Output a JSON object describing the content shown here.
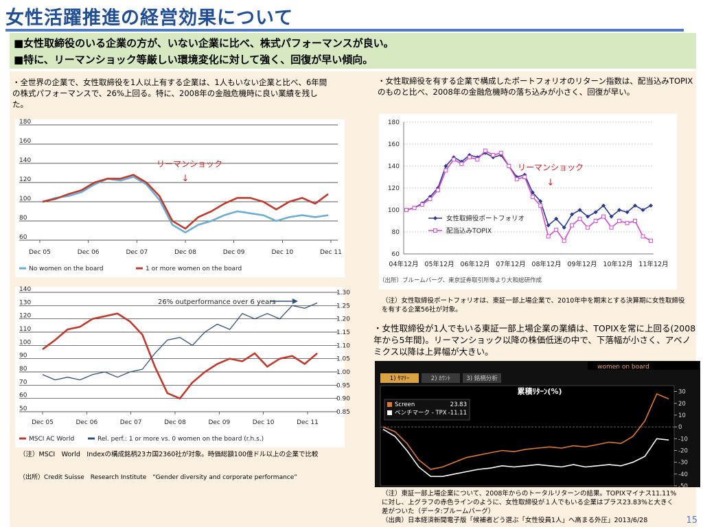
{
  "slide": {
    "title": "女性活躍推進の経営効果について",
    "summary_line1": "■女性取締役のいる企業の方が、いない企業に比べ、株式パフォーマンスが良い。",
    "summary_line2": "■特に、リーマンショック等厳しい環境変化に対して強く、回復が早い傾向。",
    "left_text": "・全世界の企業で、女性取締役を1人以上有する企業は、1人もいない企業と比べ、6年間の株式パフォーマンスで、26%上回る。特に、2008年の金融危機時に良い業績を残した。",
    "right_text1": "・女性取締役を有する企業で構成したポートフォリオのリターン指数は、配当込みTOPIXのものと比べ、2008年の金融危機時の落ち込みが小さく、回復が早い。",
    "right_note1": "（注）女性取締役ポートフォリオは、東証一部上場企業で、2010年中を期末とする決算期に女性取締役を有する企業56社が対象。",
    "right_text2": "・女性取締役が1人でもいる東証一部上場企業の業績は、TOPIXを常に上回る(2008年から5年間)。リーマンショック以降の株価低迷の中で、下落幅が小さく、アベノミクス以降は上昇幅が大きい。",
    "left_note1": "（注）MSCI　World　Indexの構成銘柄23カ国2360社が対象。時価総額100億ドル以上の企業で比較",
    "left_note2": "（出所）Credit Suisse　Research Institute　“Gender diversity and corporate performance”",
    "right_note2": "（注）東証一部上場企業について、2008年からのトータルリターンの結果。TOPIXマイナス11.11%に対し、上グラフの赤色ラインのように、女性取締役が１人でもいる企業はプラス23.83%と大きく差がついた（データ:ブルームバーグ）",
    "right_note3": "（出典）日本経済新聞電子版「候補者どう選ぶ「女性役員1人」へ高まる外圧」2013/6/28",
    "page_number": "15"
  },
  "chart_data": [
    {
      "type": "line",
      "annotation": "リーマンショック",
      "annotation_arrow": "↓",
      "x_labels": [
        "Dec 05",
        "Dec 06",
        "Dec 07",
        "Dec 08",
        "Dec 09",
        "Dec 10",
        "Dec 11"
      ],
      "yticks": [
        60,
        80,
        100,
        120,
        140,
        160,
        180
      ],
      "ylim": [
        60,
        180
      ],
      "legend_placement": "bottom",
      "series": [
        {
          "name": "No women on the board",
          "color": "#6aaed6",
          "values": [
            100,
            104,
            106,
            110,
            118,
            124,
            122,
            126,
            118,
            102,
            76,
            68,
            76,
            80,
            86,
            90,
            88,
            86,
            80,
            84,
            86,
            84,
            86
          ]
        },
        {
          "name": "1 or more women on the board",
          "color": "#c0392b",
          "values": [
            100,
            103,
            108,
            112,
            120,
            124,
            124,
            128,
            120,
            106,
            80,
            72,
            84,
            90,
            98,
            104,
            104,
            100,
            92,
            100,
            104,
            98,
            108
          ]
        }
      ]
    },
    {
      "type": "line",
      "annotation": "26% outperformance over 6 years",
      "x_labels": [
        "Dec 05",
        "Dec 06",
        "Dec 07",
        "Dec 08",
        "Dec 09",
        "Dec 10",
        "Dec 11"
      ],
      "yticks_left": [
        50,
        60,
        70,
        80,
        90,
        100,
        110,
        120,
        130,
        140
      ],
      "yticks_right": [
        "0.85",
        "0.90",
        "0.95",
        "1.00",
        "1.05",
        "1.10",
        "1.15",
        "1.20",
        "1.25",
        "1.30"
      ],
      "ylim_left": [
        50,
        140
      ],
      "ylim_right": [
        0.85,
        1.3
      ],
      "legend_placement": "bottom",
      "series": [
        {
          "name": "MSCI AC World",
          "color": "#c0392b",
          "axis": "left",
          "values": [
            97,
            104,
            112,
            114,
            120,
            122,
            124,
            118,
            108,
            84,
            64,
            60,
            72,
            80,
            86,
            90,
            88,
            94,
            84,
            90,
            92,
            86,
            94
          ]
        },
        {
          "name": "Rel. perf.: 1 or more vs. 0 women on the board (r.h.s.)",
          "color": "#2c4f7c",
          "axis": "right",
          "values": [
            0.99,
            0.97,
            0.98,
            0.97,
            0.99,
            1.0,
            0.98,
            1.0,
            1.01,
            1.07,
            1.12,
            1.13,
            1.1,
            1.15,
            1.18,
            1.16,
            1.22,
            1.2,
            1.22,
            1.2,
            1.25,
            1.24,
            1.26
          ]
        }
      ]
    },
    {
      "type": "line",
      "annotation": "リーマンショック",
      "annotation_arrow": "↓",
      "x_labels": [
        "04年12月",
        "05年12月",
        "06年12月",
        "07年12月",
        "08年12月",
        "09年12月",
        "10年12月",
        "11年12月"
      ],
      "yticks": [
        60,
        80,
        100,
        120,
        140,
        160,
        180
      ],
      "ylim": [
        60,
        180
      ],
      "source": "（出所）ブルームバーグ、東京証券取引所等より大和総研作成",
      "legend_placement": "center",
      "series": [
        {
          "name": "女性取締役ポートフォリオ",
          "color": "#2b3a8f",
          "values": [
            100,
            102,
            106,
            112,
            120,
            140,
            148,
            144,
            150,
            148,
            152,
            148,
            150,
            140,
            130,
            132,
            116,
            108,
            86,
            92,
            84,
            96,
            100,
            94,
            98,
            104,
            94,
            100,
            98,
            104,
            100,
            104
          ]
        },
        {
          "name": "配当込みTOPIX",
          "color": "#d946d6",
          "values": [
            100,
            102,
            105,
            110,
            118,
            136,
            146,
            142,
            148,
            146,
            154,
            150,
            152,
            140,
            128,
            130,
            112,
            104,
            76,
            82,
            72,
            86,
            92,
            84,
            90,
            94,
            84,
            90,
            88,
            90,
            76,
            72
          ]
        }
      ]
    },
    {
      "type": "line",
      "tabs": [
        "1) ｻﾏﾘｰ",
        "2) ｶｳﾝﾄ",
        "3) 銘柄分析"
      ],
      "header_label": "women on board",
      "title": "累積ﾘﾀｰﾝ(%)",
      "yticks": [
        "30",
        "20",
        "10",
        "0",
        "-10",
        "-20",
        "-30",
        "-40",
        "-50"
      ],
      "ylim": [
        -50,
        35
      ],
      "legend_placement": "top-left",
      "series": [
        {
          "name": "Screen",
          "value_label": "23.83",
          "color": "#e07a2e",
          "values": [
            0,
            -4,
            -14,
            -28,
            -36,
            -34,
            -30,
            -26,
            -24,
            -22,
            -20,
            -21,
            -19,
            -18,
            -17,
            -18,
            -16,
            -17,
            -15,
            -13,
            -14,
            -8,
            5,
            28,
            23.83
          ]
        },
        {
          "name": "ベンチマーク - TPX",
          "value_label": "-11.11",
          "color": "#ffffff",
          "values": [
            -2,
            -8,
            -20,
            -34,
            -42,
            -42,
            -40,
            -38,
            -36,
            -35,
            -33,
            -34,
            -33,
            -32,
            -33,
            -34,
            -32,
            -34,
            -33,
            -32,
            -33,
            -30,
            -25,
            -10,
            -11.11
          ]
        }
      ]
    }
  ]
}
